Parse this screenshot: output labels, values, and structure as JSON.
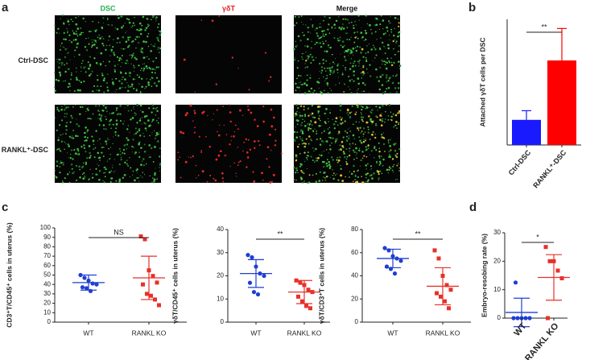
{
  "image_panel": {
    "panel": "a",
    "columns": [
      "DSC",
      "γδT",
      "Merge"
    ],
    "column_colors": [
      "#22b14c",
      "#e02020",
      "#111111"
    ],
    "rows": [
      "Ctrl-DSC",
      "RANKL⁺-DSC"
    ]
  },
  "chart_data": [
    {
      "type": "bar",
      "panel": "b",
      "ylabel": "Attached γδT cells per DSC",
      "categories": [
        "Ctrl-DSC",
        "RANKL⁺-DSC"
      ],
      "values": [
        0.11,
        0.37
      ],
      "errors": [
        0.04,
        0.14
      ],
      "colors": [
        "#1a1aff",
        "#ff0000"
      ],
      "ylim": [
        0,
        0.55
      ],
      "significance": "**"
    },
    {
      "type": "dotplot",
      "panel": "c",
      "ylabel": "CD3⁺T/CD45⁺ cells in uterus (%)",
      "categories": [
        "WT",
        "RANKL KO"
      ],
      "points": [
        [
          50,
          47,
          44,
          41,
          40,
          37,
          36,
          33
        ],
        [
          91,
          88,
          55,
          49,
          42,
          40,
          30,
          28,
          24,
          18
        ]
      ],
      "means": [
        42,
        47
      ],
      "sds": [
        8,
        23
      ],
      "colors": [
        "#1f3fd1",
        "#e8302a"
      ],
      "ylim": [
        0,
        100
      ],
      "yticks": [
        0,
        10,
        20,
        30,
        40,
        50,
        60,
        70,
        80,
        90,
        100
      ],
      "significance": "NS"
    },
    {
      "type": "dotplot",
      "ylabel": "γδT/CD45⁺ cells in uterus (%)",
      "categories": [
        "WT",
        "RANKL KO"
      ],
      "points": [
        [
          29,
          28,
          24,
          21,
          20,
          17,
          13,
          12
        ],
        [
          18,
          17,
          16,
          14,
          13,
          11,
          9,
          7,
          6
        ]
      ],
      "means": [
        21,
        13
      ],
      "sds": [
        6,
        5
      ],
      "colors": [
        "#1f3fd1",
        "#e8302a"
      ],
      "ylim": [
        0,
        40
      ],
      "yticks": [
        0,
        10,
        20,
        30,
        40
      ],
      "significance": "**"
    },
    {
      "type": "dotplot",
      "ylabel": "γδT/CD3⁺T cells in uterus (%)",
      "categories": [
        "WT",
        "RANKL KO"
      ],
      "points": [
        [
          64,
          62,
          57,
          55,
          53,
          48,
          46,
          42
        ],
        [
          62,
          55,
          40,
          32,
          28,
          25,
          22,
          18,
          12
        ]
      ],
      "means": [
        55,
        31
      ],
      "sds": [
        8,
        16
      ],
      "colors": [
        "#1f3fd1",
        "#e8302a"
      ],
      "ylim": [
        0,
        80
      ],
      "yticks": [
        0,
        20,
        40,
        60,
        80
      ],
      "significance": "**"
    },
    {
      "type": "dotplot",
      "panel": "d",
      "ylabel": "Embryo-resobing rate (%)",
      "categories": [
        "WT",
        "RANKL KO"
      ],
      "points": [
        [
          0,
          0,
          0,
          0,
          0,
          12.5
        ],
        [
          25,
          20,
          20,
          16.7,
          14,
          0
        ]
      ],
      "means": [
        2,
        14.3
      ],
      "sds": [
        5,
        8
      ],
      "colors": [
        "#1f3fd1",
        "#e8302a"
      ],
      "ylim": [
        0,
        30
      ],
      "yticks": [
        0,
        10,
        20,
        30
      ],
      "significance": "*"
    }
  ]
}
